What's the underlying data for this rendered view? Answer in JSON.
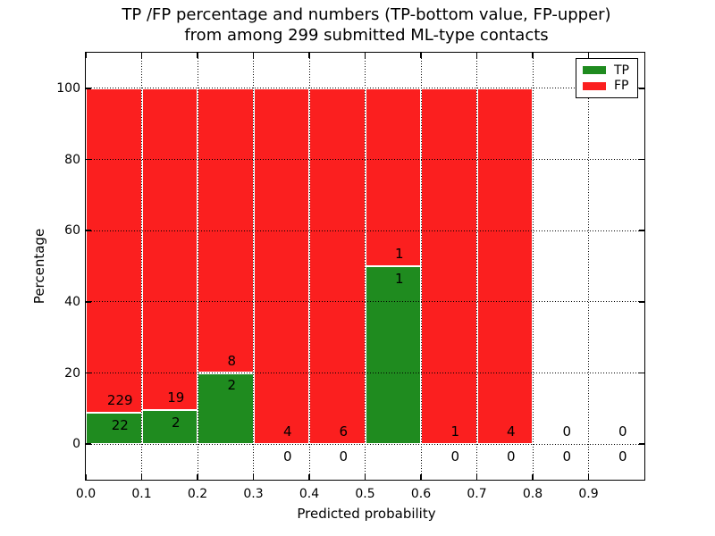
{
  "title": {
    "line1": "TP /FP percentage and numbers (TP-bottom value, FP-upper)",
    "line2": "from among 299 submitted ML-type contacts"
  },
  "axes": {
    "xlabel": "Predicted probability",
    "ylabel": "Percentage"
  },
  "legend": {
    "position": "upper right",
    "items": [
      {
        "label": "TP",
        "color": "#1f8b1f"
      },
      {
        "label": "FP",
        "color": "#fb1f1f"
      }
    ]
  },
  "chart_data": {
    "type": "bar",
    "stacked": true,
    "title": "TP /FP percentage and numbers (TP-bottom value, FP-upper) from among 299 submitted ML-type contacts",
    "xlabel": "Predicted probability",
    "ylabel": "Percentage",
    "xlim": [
      0.0,
      1.0
    ],
    "ylim": [
      -10,
      110
    ],
    "x_ticks": [
      "0.0",
      "0.1",
      "0.2",
      "0.3",
      "0.4",
      "0.5",
      "0.6",
      "0.7",
      "0.8",
      "0.9"
    ],
    "y_ticks": [
      0,
      20,
      40,
      60,
      80,
      100
    ],
    "grid": "dotted",
    "legend_position": "upper right",
    "total_contacts": 299,
    "bin_width": 0.1,
    "colors": {
      "tp": "#1f8b1f",
      "fp": "#fb1f1f"
    },
    "bins": [
      {
        "x0": 0.0,
        "x1": 0.1,
        "tp": 22,
        "fp": 229,
        "tp_pct": 8.76,
        "fp_pct": 91.24
      },
      {
        "x0": 0.1,
        "x1": 0.2,
        "tp": 2,
        "fp": 19,
        "tp_pct": 9.52,
        "fp_pct": 90.48
      },
      {
        "x0": 0.2,
        "x1": 0.3,
        "tp": 2,
        "fp": 8,
        "tp_pct": 20.0,
        "fp_pct": 80.0
      },
      {
        "x0": 0.3,
        "x1": 0.4,
        "tp": 0,
        "fp": 4,
        "tp_pct": 0.0,
        "fp_pct": 100.0
      },
      {
        "x0": 0.4,
        "x1": 0.5,
        "tp": 0,
        "fp": 6,
        "tp_pct": 0.0,
        "fp_pct": 100.0
      },
      {
        "x0": 0.5,
        "x1": 0.6,
        "tp": 1,
        "fp": 1,
        "tp_pct": 50.0,
        "fp_pct": 50.0
      },
      {
        "x0": 0.6,
        "x1": 0.7,
        "tp": 0,
        "fp": 1,
        "tp_pct": 0.0,
        "fp_pct": 100.0
      },
      {
        "x0": 0.7,
        "x1": 0.8,
        "tp": 0,
        "fp": 4,
        "tp_pct": 0.0,
        "fp_pct": 100.0
      },
      {
        "x0": 0.8,
        "x1": 0.9,
        "tp": 0,
        "fp": 0,
        "tp_pct": 0.0,
        "fp_pct": 0.0
      },
      {
        "x0": 0.9,
        "x1": 1.0,
        "tp": 0,
        "fp": 0,
        "tp_pct": 0.0,
        "fp_pct": 0.0
      }
    ],
    "series": [
      {
        "name": "TP",
        "color": "#1f8b1f",
        "values": [
          8.76,
          9.52,
          20.0,
          0,
          0,
          50.0,
          0,
          0,
          0,
          0
        ]
      },
      {
        "name": "FP",
        "color": "#fb1f1f",
        "values": [
          91.24,
          90.48,
          80.0,
          100,
          100,
          50.0,
          100,
          100,
          0,
          0
        ]
      }
    ]
  }
}
